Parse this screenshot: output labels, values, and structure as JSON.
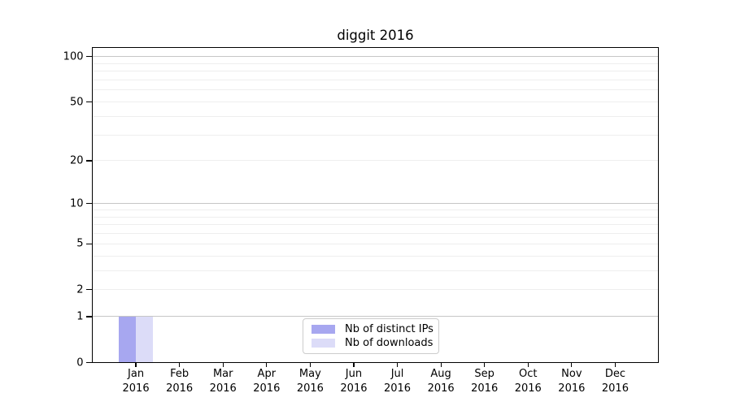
{
  "chart_data": {
    "type": "bar",
    "title": "diggit 2016",
    "categories": [
      {
        "month": "Jan",
        "year": "2016"
      },
      {
        "month": "Feb",
        "year": "2016"
      },
      {
        "month": "Mar",
        "year": "2016"
      },
      {
        "month": "Apr",
        "year": "2016"
      },
      {
        "month": "May",
        "year": "2016"
      },
      {
        "month": "Jun",
        "year": "2016"
      },
      {
        "month": "Jul",
        "year": "2016"
      },
      {
        "month": "Aug",
        "year": "2016"
      },
      {
        "month": "Sep",
        "year": "2016"
      },
      {
        "month": "Oct",
        "year": "2016"
      },
      {
        "month": "Nov",
        "year": "2016"
      },
      {
        "month": "Dec",
        "year": "2016"
      }
    ],
    "series": [
      {
        "name": "Nb of distinct IPs",
        "color": "#a7a7f0",
        "values": [
          1,
          0,
          0,
          0,
          0,
          0,
          0,
          0,
          0,
          0,
          0,
          0
        ]
      },
      {
        "name": "Nb of downloads",
        "color": "#dcdcf8",
        "values": [
          1,
          0,
          0,
          0,
          0,
          0,
          0,
          0,
          0,
          0,
          0,
          0
        ]
      }
    ],
    "yscale": "log1p",
    "yticks": [
      0,
      1,
      2,
      5,
      10,
      20,
      50,
      100
    ],
    "ylim": [
      0,
      115
    ],
    "xlabel": "",
    "ylabel": "",
    "grid": {
      "horizontal": true,
      "major_values": [
        1,
        10,
        100
      ],
      "minor_values": [
        2,
        3,
        4,
        5,
        6,
        7,
        8,
        9,
        20,
        30,
        40,
        50,
        60,
        70,
        80,
        90
      ],
      "major_color": "#c6c6c6",
      "minor_color": "#eeeeee"
    },
    "legend": {
      "position": "lower center",
      "border_color": "#cccccc",
      "background": "#ffffff"
    }
  }
}
